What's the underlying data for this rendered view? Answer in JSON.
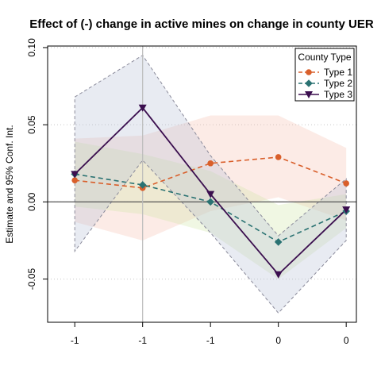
{
  "chart_data": {
    "type": "line",
    "title": "Effect of (-) change in active mines on change in county UER",
    "xlabel": "",
    "ylabel": "Estimate and 95% Conf. Int.",
    "x": [
      1,
      2,
      3,
      4,
      5
    ],
    "x_tick_labels": [
      "-1",
      "-1",
      "-1",
      "0",
      "0"
    ],
    "xlim": [
      0.6,
      5.15
    ],
    "ylim": [
      -0.078,
      0.101
    ],
    "y_ticks": [
      -0.05,
      0.0,
      0.05,
      0.1
    ],
    "y_tick_labels": [
      "-0.05",
      "0.00",
      "0.05",
      "0.10"
    ],
    "reference_lines": {
      "h": 0,
      "v": 2
    },
    "grid": "horizontal-dotted",
    "legend": {
      "title": "County Type",
      "position": "top-right"
    },
    "series": [
      {
        "name": "Type 1",
        "values": [
          0.014,
          0.009,
          0.025,
          0.029,
          0.012
        ],
        "lower": [
          -0.013,
          -0.025,
          -0.006,
          0.003,
          -0.012
        ],
        "upper": [
          0.041,
          0.043,
          0.056,
          0.056,
          0.035
        ],
        "line_color": "#d95f2b",
        "band_color": "#f7c2b2",
        "line_style": "dashed",
        "marker": "circle"
      },
      {
        "name": "Type 2",
        "values": [
          0.018,
          0.011,
          0.0,
          -0.026,
          -0.006
        ],
        "lower": [
          -0.003,
          -0.008,
          -0.02,
          -0.05,
          -0.017
        ],
        "upper": [
          0.039,
          0.031,
          0.02,
          -0.002,
          0.005
        ],
        "line_color": "#2a7272",
        "band_color": "#cfe5a8",
        "line_style": "dashed",
        "marker": "diamond"
      },
      {
        "name": "Type 3",
        "values": [
          0.018,
          0.061,
          0.005,
          -0.047,
          -0.005
        ],
        "lower": [
          -0.032,
          0.027,
          -0.02,
          -0.072,
          -0.025
        ],
        "upper": [
          0.068,
          0.095,
          0.03,
          -0.022,
          0.015
        ],
        "line_color": "#3b0f4f",
        "band_color": "#b8c2d8",
        "band_border": "#8a8a9a",
        "line_style": "solid",
        "marker": "triangle-down"
      }
    ]
  }
}
